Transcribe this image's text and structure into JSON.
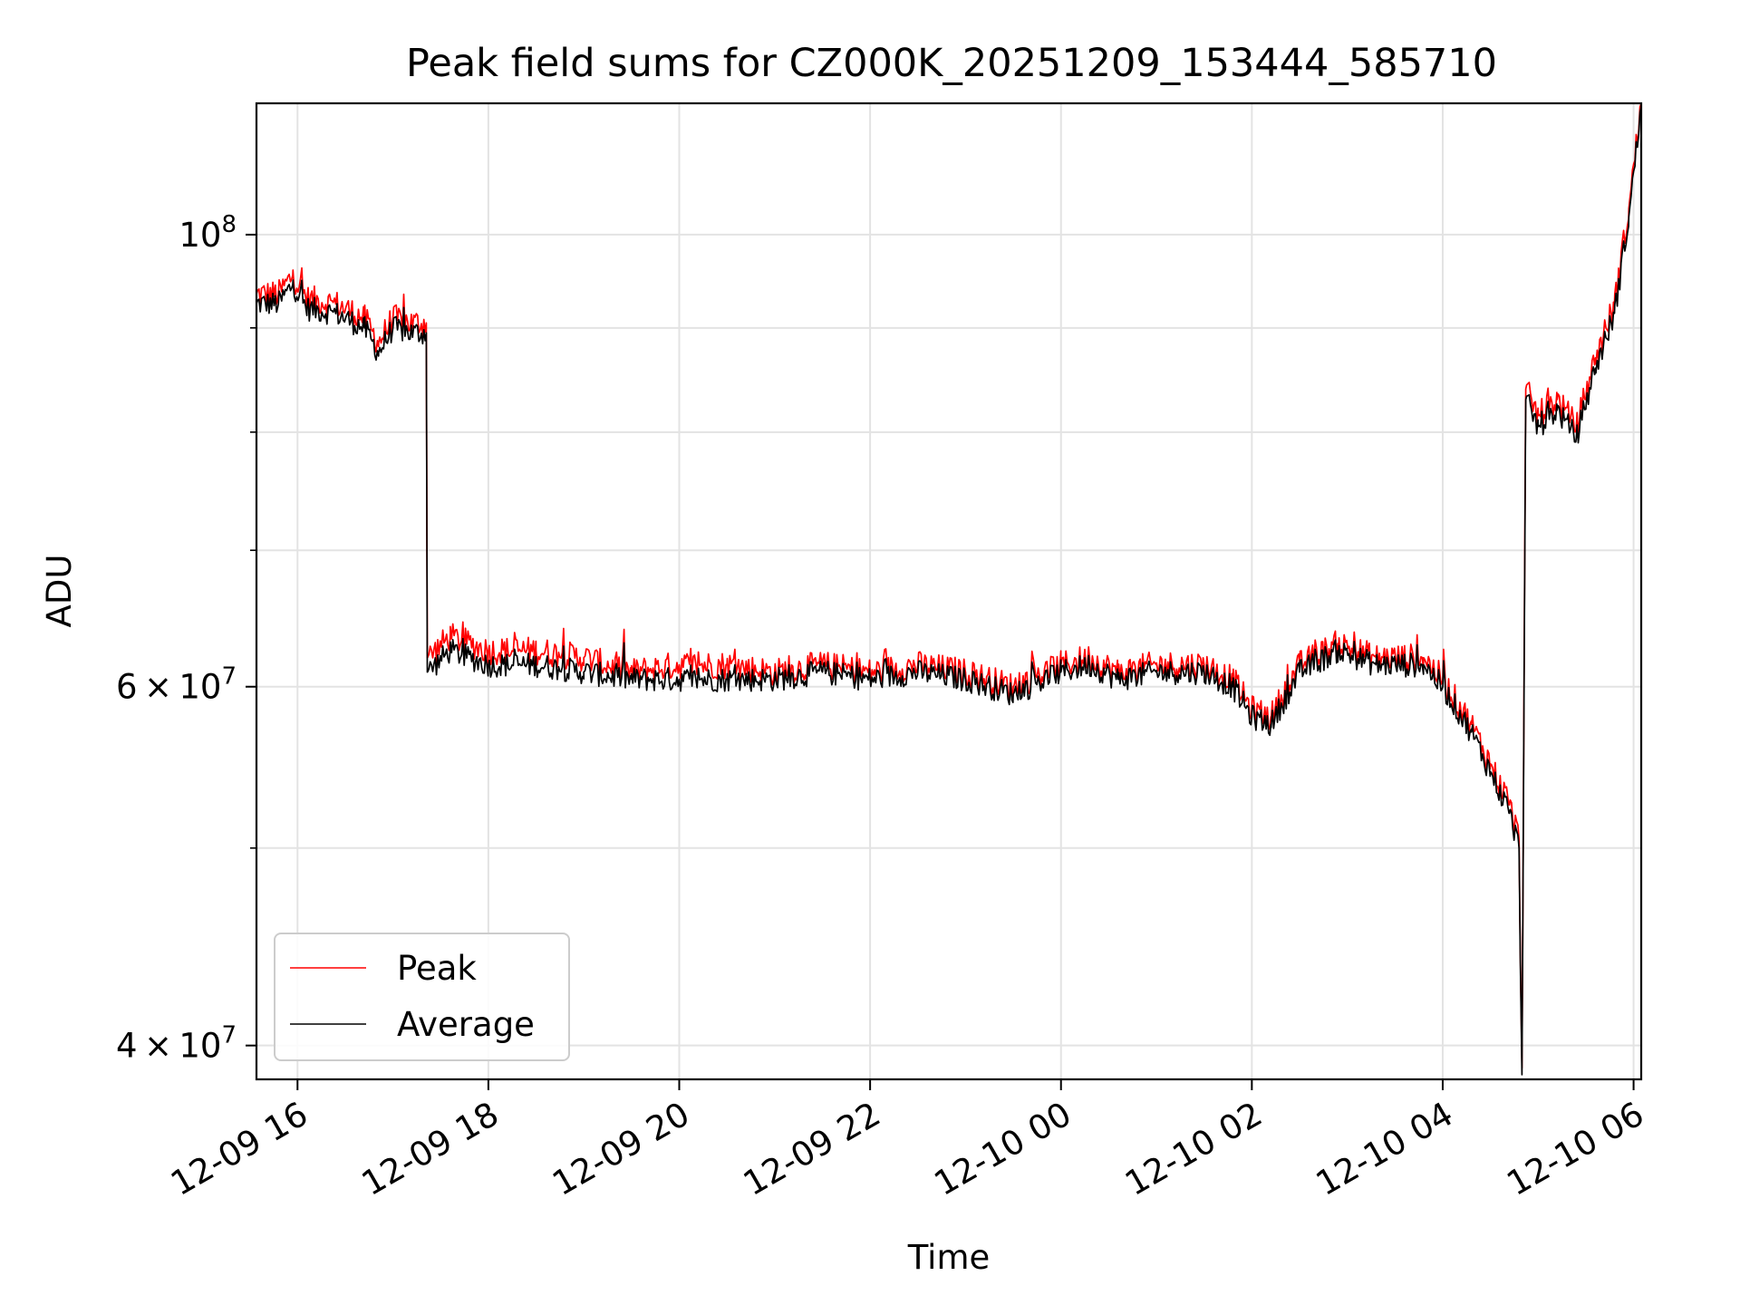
{
  "chart_data": {
    "type": "line",
    "title": "Peak field sums for CZ000K_20251209_153444_585710",
    "xlabel": "Time",
    "ylabel": "ADU",
    "yscale": "log",
    "ylim": [
      38500000,
      116000000
    ],
    "xlim_hours": [
      15.57,
      30.08
    ],
    "x_unit": "hours since 2025-12-09 00:00",
    "grid": true,
    "legend_position": "lower-left",
    "xticks": [
      {
        "value": 16,
        "label": "12-09 16"
      },
      {
        "value": 18,
        "label": "12-09 18"
      },
      {
        "value": 20,
        "label": "12-09 20"
      },
      {
        "value": 22,
        "label": "12-09 22"
      },
      {
        "value": 24,
        "label": "12-10 00"
      },
      {
        "value": 26,
        "label": "12-10 02"
      },
      {
        "value": 28,
        "label": "12-10 04"
      },
      {
        "value": 30,
        "label": "12-10 06"
      }
    ],
    "yticks_major": [
      {
        "value": 40000000,
        "mantissa": "4",
        "times": "×",
        "base": "10",
        "exp": "7"
      },
      {
        "value": 60000000,
        "mantissa": "6",
        "times": "×",
        "base": "10",
        "exp": "7"
      },
      {
        "value": 100000000,
        "mantissa": "",
        "times": "",
        "base": "10",
        "exp": "8"
      }
    ],
    "yticks_minor": [
      50000000,
      70000000,
      80000000,
      90000000
    ],
    "series": [
      {
        "name": "Peak",
        "color": "#ff0000",
        "points": [
          [
            15.57,
            93500000
          ],
          [
            15.8,
            93500000
          ],
          [
            15.95,
            95500000
          ],
          [
            16.1,
            93000000
          ],
          [
            16.4,
            92500000
          ],
          [
            16.7,
            91000000
          ],
          [
            16.85,
            88500000
          ],
          [
            17.0,
            91000000
          ],
          [
            17.2,
            90500000
          ],
          [
            17.35,
            90500000
          ],
          [
            17.36,
            62000000
          ],
          [
            17.6,
            63500000
          ],
          [
            18.0,
            62500000
          ],
          [
            18.5,
            62500000
          ],
          [
            19.0,
            62000000
          ],
          [
            19.5,
            61000000
          ],
          [
            20.0,
            61500000
          ],
          [
            20.5,
            61500000
          ],
          [
            21.0,
            61000000
          ],
          [
            21.5,
            61500000
          ],
          [
            22.0,
            61000000
          ],
          [
            22.5,
            61500000
          ],
          [
            23.0,
            61000000
          ],
          [
            23.5,
            60000000
          ],
          [
            24.0,
            61500000
          ],
          [
            24.3,
            62000000
          ],
          [
            24.6,
            61000000
          ],
          [
            25.0,
            61500000
          ],
          [
            25.5,
            61500000
          ],
          [
            25.8,
            60500000
          ],
          [
            26.0,
            58500000
          ],
          [
            26.2,
            58000000
          ],
          [
            26.5,
            61500000
          ],
          [
            26.9,
            63000000
          ],
          [
            27.3,
            62000000
          ],
          [
            27.8,
            62000000
          ],
          [
            28.0,
            60500000
          ],
          [
            28.3,
            57500000
          ],
          [
            28.5,
            55000000
          ],
          [
            28.7,
            52500000
          ],
          [
            28.8,
            50500000
          ],
          [
            28.83,
            39000000
          ],
          [
            28.87,
            84000000
          ],
          [
            29.0,
            81500000
          ],
          [
            29.2,
            83000000
          ],
          [
            29.4,
            80500000
          ],
          [
            29.6,
            87000000
          ],
          [
            29.8,
            92500000
          ],
          [
            29.95,
            103000000
          ],
          [
            30.08,
            116000000
          ]
        ]
      },
      {
        "name": "Average",
        "color": "#000000",
        "points": [
          [
            15.57,
            92500000
          ],
          [
            15.8,
            92500000
          ],
          [
            15.95,
            94500000
          ],
          [
            16.1,
            92000000
          ],
          [
            16.4,
            91500000
          ],
          [
            16.7,
            90000000
          ],
          [
            16.85,
            87500000
          ],
          [
            17.0,
            90000000
          ],
          [
            17.2,
            89500000
          ],
          [
            17.35,
            89500000
          ],
          [
            17.36,
            61000000
          ],
          [
            17.6,
            62500000
          ],
          [
            18.0,
            61500000
          ],
          [
            18.5,
            61500000
          ],
          [
            19.0,
            61000000
          ],
          [
            19.5,
            60500000
          ],
          [
            20.0,
            60500000
          ],
          [
            20.5,
            60500000
          ],
          [
            21.0,
            60500000
          ],
          [
            21.5,
            61000000
          ],
          [
            22.0,
            60500000
          ],
          [
            22.5,
            61000000
          ],
          [
            23.0,
            60500000
          ],
          [
            23.5,
            59500000
          ],
          [
            24.0,
            61000000
          ],
          [
            24.3,
            61500000
          ],
          [
            24.6,
            60500000
          ],
          [
            25.0,
            61000000
          ],
          [
            25.5,
            61000000
          ],
          [
            25.8,
            60000000
          ],
          [
            26.0,
            58000000
          ],
          [
            26.2,
            57500000
          ],
          [
            26.5,
            61000000
          ],
          [
            26.9,
            62500000
          ],
          [
            27.3,
            61500000
          ],
          [
            27.8,
            61500000
          ],
          [
            28.0,
            60000000
          ],
          [
            28.3,
            57000000
          ],
          [
            28.5,
            54500000
          ],
          [
            28.7,
            52000000
          ],
          [
            28.8,
            50000000
          ],
          [
            28.83,
            38700000
          ],
          [
            28.87,
            83000000
          ],
          [
            29.0,
            80500000
          ],
          [
            29.2,
            82000000
          ],
          [
            29.4,
            79500000
          ],
          [
            29.6,
            86000000
          ],
          [
            29.8,
            91500000
          ],
          [
            29.95,
            102000000
          ],
          [
            30.08,
            115500000
          ]
        ]
      }
    ]
  }
}
